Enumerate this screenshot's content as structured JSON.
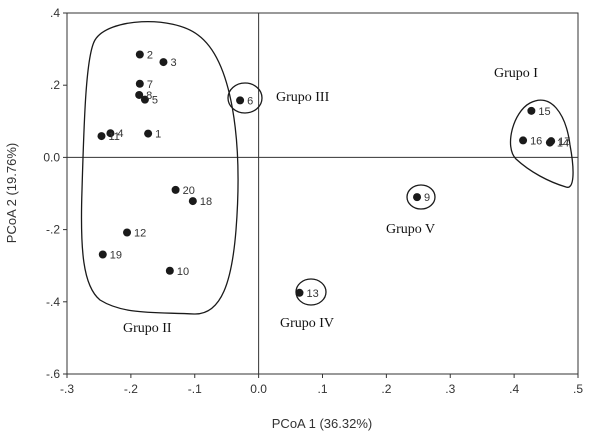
{
  "chart_data": {
    "type": "scatter",
    "xlabel": "PCoA 1 (36.32%)",
    "ylabel": "PCoA 2 (19.76%)",
    "xlim": [
      -0.3,
      0.5
    ],
    "ylim": [
      -0.6,
      0.4
    ],
    "x_ticks": [
      -0.3,
      -0.2,
      -0.1,
      0.0,
      0.1,
      0.2,
      0.3,
      0.4,
      0.5
    ],
    "x_tick_labels": [
      "-.3",
      "-.2",
      "-.1",
      "0.0",
      ".1",
      ".2",
      ".3",
      ".4",
      ".5"
    ],
    "y_ticks": [
      -0.6,
      -0.4,
      -0.2,
      0.0,
      0.2,
      0.4
    ],
    "y_tick_labels": [
      "-.6",
      "-.4",
      "-.2",
      "0.0",
      ".2",
      ".4"
    ],
    "grid": false,
    "reference_lines": {
      "x": 0,
      "y": 0
    },
    "marker_color": "#1a1a1a",
    "points": [
      {
        "label": "1",
        "x": -0.173,
        "y": 0.066
      },
      {
        "label": "2",
        "x": -0.186,
        "y": 0.285
      },
      {
        "label": "3",
        "x": -0.149,
        "y": 0.264
      },
      {
        "label": "4",
        "x": -0.232,
        "y": 0.067
      },
      {
        "label": "5",
        "x": -0.178,
        "y": 0.16
      },
      {
        "label": "6",
        "x": -0.029,
        "y": 0.158
      },
      {
        "label": "7",
        "x": -0.186,
        "y": 0.204
      },
      {
        "label": "8",
        "x": -0.187,
        "y": 0.173
      },
      {
        "label": "9",
        "x": 0.248,
        "y": -0.11
      },
      {
        "label": "10",
        "x": -0.139,
        "y": -0.314
      },
      {
        "label": "11",
        "x": -0.246,
        "y": 0.059
      },
      {
        "label": "12",
        "x": -0.206,
        "y": -0.208
      },
      {
        "label": "13",
        "x": 0.064,
        "y": -0.375
      },
      {
        "label": "14",
        "x": 0.456,
        "y": 0.041
      },
      {
        "label": "15",
        "x": 0.427,
        "y": 0.129
      },
      {
        "label": "16",
        "x": 0.414,
        "y": 0.047
      },
      {
        "label": "17",
        "x": 0.458,
        "y": 0.045
      },
      {
        "label": "18",
        "x": -0.103,
        "y": -0.121
      },
      {
        "label": "19",
        "x": -0.244,
        "y": -0.269
      },
      {
        "label": "20",
        "x": -0.13,
        "y": -0.09
      }
    ],
    "groups": [
      {
        "name": "Grupo I",
        "members": [
          "14",
          "15",
          "16",
          "17"
        ]
      },
      {
        "name": "Grupo II",
        "members": [
          "1",
          "2",
          "3",
          "4",
          "5",
          "7",
          "8",
          "10",
          "11",
          "12",
          "18",
          "19",
          "20"
        ]
      },
      {
        "name": "Grupo III",
        "members": [
          "6"
        ]
      },
      {
        "name": "Grupo IV",
        "members": [
          "13"
        ]
      },
      {
        "name": "Grupo V",
        "members": [
          "9"
        ]
      }
    ]
  }
}
